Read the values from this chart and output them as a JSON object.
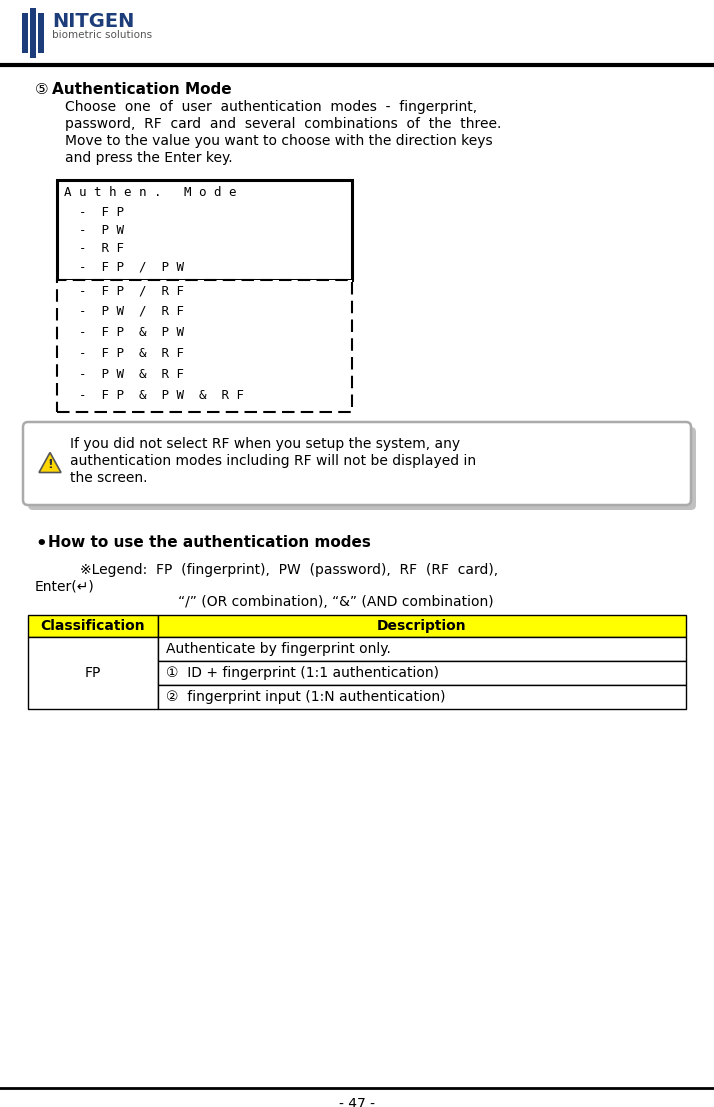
{
  "page_number": "- 47 -",
  "circle_number": "⑤",
  "title": "Authentication Mode",
  "description_lines": [
    "Choose  one  of  user  authentication  modes  -  fingerprint,",
    "password,  RF  card  and  several  combinations  of  the  three.",
    "Move to the value you want to choose with the direction keys",
    "and press the Enter key."
  ],
  "lcd_header": "A u t h e n .   M o d e",
  "lcd_solid_items": [
    "  -  F P",
    "  -  P W",
    "  -  R F",
    "  -  F P  /  P W"
  ],
  "lcd_dashed_items": [
    "  -  F P  /  R F",
    "  -  P W  /  R F",
    "  -  F P  &  P W",
    "  -  F P  &  R F",
    "  -  P W  &  R F",
    "  -  F P  &  P W  &  R F"
  ],
  "warning_text_lines": [
    "If you did not select RF when you setup the system, any",
    "authentication modes including RF will not be displayed in",
    "the screen."
  ],
  "bullet_title": "How to use the authentication modes",
  "legend_line1": "※Legend:  FP  (fingerprint),  PW  (password),  RF  (RF  card),",
  "legend_line2": "Enter(↵)",
  "legend_line3": "           “/” (OR combination), “&” (AND combination)",
  "table_header": [
    "Classification",
    "Description"
  ],
  "table_col1": [
    "FP"
  ],
  "table_col2_rows": [
    "Authenticate by fingerprint only.",
    "①  ID + fingerprint (1:1 authentication)",
    "②  fingerprint input (1:N authentication)"
  ],
  "header_bg": "#FFFF00",
  "header_text": "#000000",
  "bg_color": "#FFFFFF",
  "text_color": "#000000",
  "logo_text_nitgen": "NITGEN",
  "logo_text_sub": "biometric solutions",
  "warning_bg": "#FFFFFF",
  "warning_border": "#aaaaaa"
}
